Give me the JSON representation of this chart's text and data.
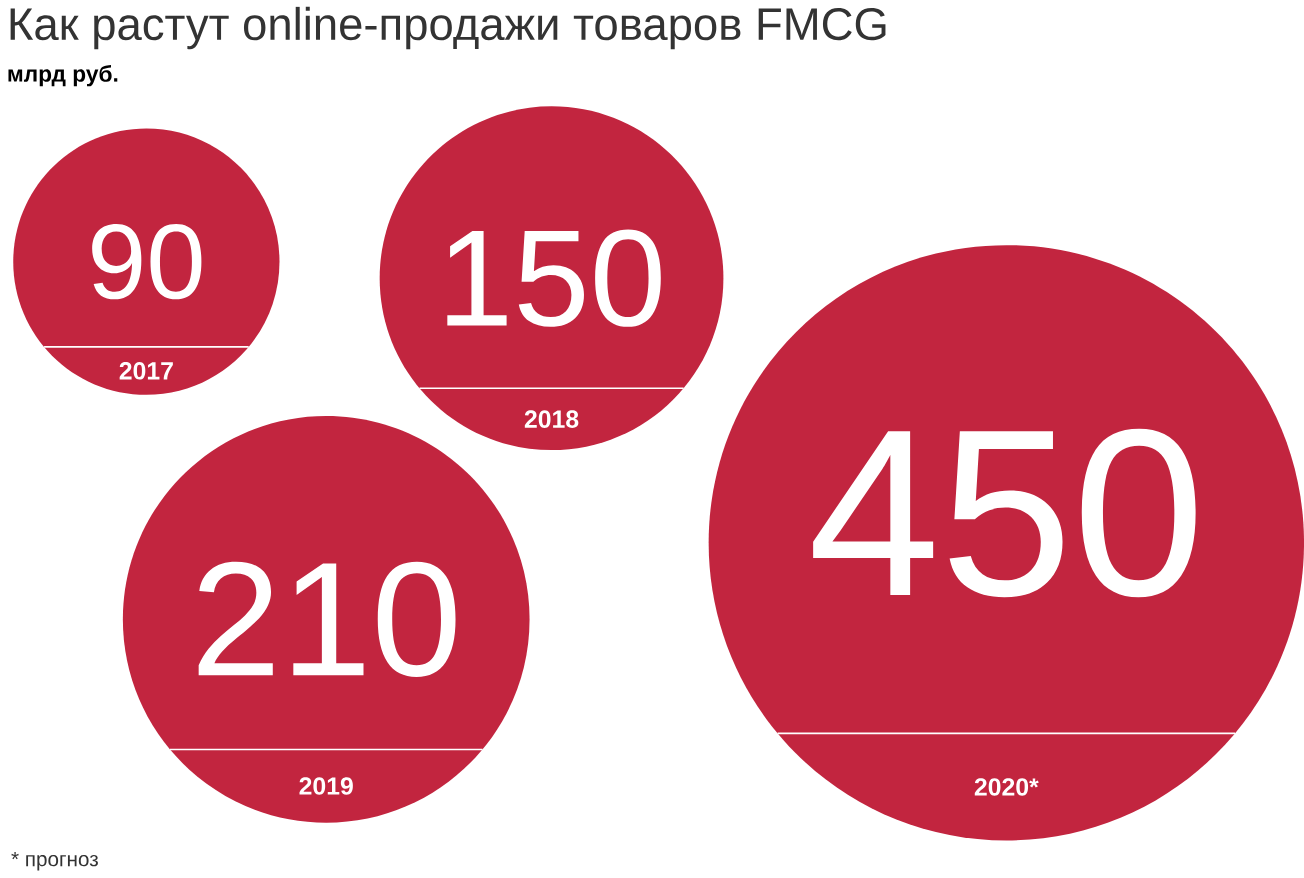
{
  "chart_data": {
    "type": "other",
    "title": "Как растут online-продажи товаров FMCG",
    "subtitle": "млрд руб.",
    "categories": [
      "2017",
      "2018",
      "2019",
      "2020*"
    ],
    "values": [
      90,
      150,
      210,
      450
    ],
    "color": "#c2253f",
    "data_labels": true,
    "annotations": [
      "* прогноз"
    ]
  }
}
